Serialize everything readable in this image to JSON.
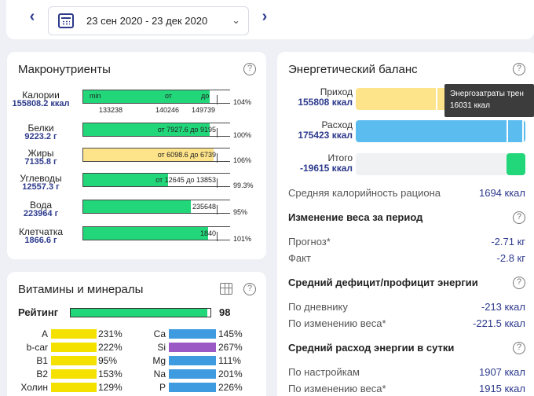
{
  "date_range": {
    "prev_icon": "chevron-left-icon",
    "next_icon": "chevron-right-icon",
    "calendar_icon": "calendar-icon",
    "text": "23 сен 2020 - 23 дек 2020"
  },
  "macro": {
    "title": "Макронутриенты",
    "header_labels": {
      "min": "min",
      "from": "от",
      "to": "до"
    },
    "header_values": {
      "min": "133238",
      "from": "140246",
      "to": "149739"
    },
    "rows": [
      {
        "name": "Калории",
        "value": "155808.2 ккал",
        "percent": "104%",
        "bar_text": "",
        "fill": 0.86,
        "color": "#22d67a"
      },
      {
        "name": "Белки",
        "value": "9223.2 г",
        "percent": "100%",
        "bar_text": "от 7927.6  до 9195",
        "fill": 0.86,
        "color": "#22d67a"
      },
      {
        "name": "Жиры",
        "value": "7135.8 г",
        "percent": "106%",
        "bar_text": "от 6098.6  до 6739",
        "fill": 0.89,
        "color": "#fde38a"
      },
      {
        "name": "Углеводы",
        "value": "12557.3 г",
        "percent": "99.3%",
        "bar_text": "от 12645  до 13853",
        "fill": 0.58,
        "color": "#22d67a"
      },
      {
        "name": "Вода",
        "value": "223964 г",
        "percent": "95%",
        "bar_text": "235648",
        "fill": 0.73,
        "color": "#22d67a"
      },
      {
        "name": "Клетчатка",
        "value": "1866.6 г",
        "percent": "101%",
        "bar_text": "1840",
        "fill": 0.85,
        "color": "#22d67a"
      }
    ]
  },
  "vitamins": {
    "title": "Витамины и минералы",
    "table_icon": "table-grid-icon",
    "rating_label": "Рейтинг",
    "rating_value": "98",
    "rating_fill": 0.98,
    "left": [
      {
        "name": "A",
        "percent": "231%",
        "color": "#f5e100"
      },
      {
        "name": "b-car",
        "percent": "222%",
        "color": "#f5e100"
      },
      {
        "name": "B1",
        "percent": "95%",
        "color": "#f5e100"
      },
      {
        "name": "B2",
        "percent": "153%",
        "color": "#f5e100"
      },
      {
        "name": "Холин",
        "percent": "129%",
        "color": "#f5e100"
      }
    ],
    "right": [
      {
        "name": "Ca",
        "percent": "145%",
        "color": "#3f9be0"
      },
      {
        "name": "Si",
        "percent": "267%",
        "color": "#9b59c6"
      },
      {
        "name": "Mg",
        "percent": "111%",
        "color": "#3f9be0"
      },
      {
        "name": "Na",
        "percent": "201%",
        "color": "#3f9be0"
      },
      {
        "name": "P",
        "percent": "226%",
        "color": "#3f9be0"
      }
    ]
  },
  "energy": {
    "title": "Энергетический баланс",
    "income_label": "Приход",
    "income_value": "155808 ккал",
    "expense_label": "Расход",
    "expense_value": "175423 ккал",
    "total_label": "Итого",
    "total_value": "-19615 ккал",
    "tooltip_line1": "Энергозатраты трен",
    "tooltip_line2": "16031 ккал",
    "avg_cal_label": "Средняя калорийность рациона",
    "avg_cal_value": "1694 ккал",
    "weight_title": "Изменение веса за период",
    "forecast_label": "Прогноз*",
    "forecast_value": "-2.71 кг",
    "fact_label": "Факт",
    "fact_value": "-2.8 кг",
    "deficit_title": "Средний дефицит/профицит энергии",
    "by_diary_label": "По дневнику",
    "by_diary_value": "-213 ккал",
    "by_weight_label": "По изменению веса*",
    "by_weight_value": "-221.5 ккал",
    "daily_title": "Средний расход энергии в сутки",
    "by_settings_label": "По настройкам",
    "by_settings_value": "1907 ккал",
    "by_weight2_label": "По изменению веса*",
    "by_weight2_value": "1915 ккал",
    "colors": {
      "income": "#fde38a",
      "expense": "#5bbcef",
      "total_bg": "#f0f1f3",
      "total": "#22d67a"
    }
  }
}
